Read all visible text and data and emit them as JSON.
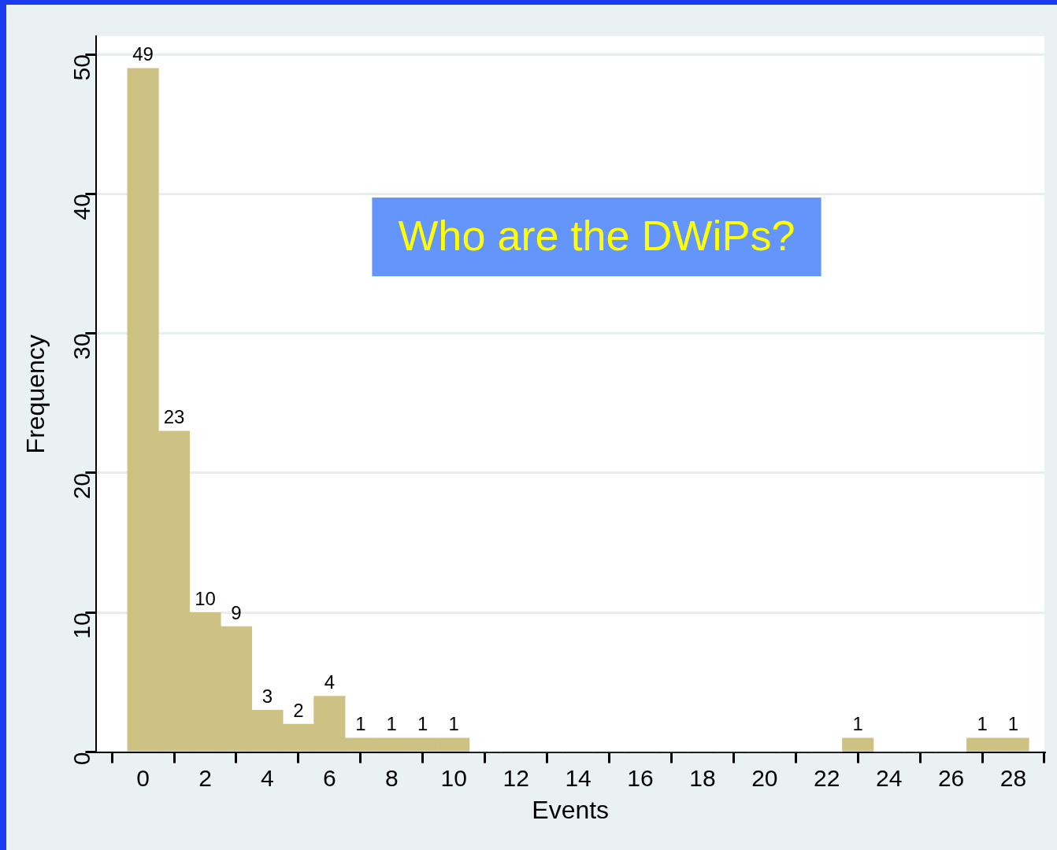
{
  "chart_data": {
    "type": "histogram",
    "xlabel": "Events",
    "ylabel": "Frequency",
    "annotations": [
      "Who are the DWiPs?"
    ],
    "bins": [
      -0.5,
      0.5,
      1.5,
      2.5,
      3.5,
      4.5,
      5.5,
      6.5,
      7.5,
      8.5,
      9.5,
      10.5,
      11.5,
      12.5,
      13.5,
      14.5,
      15.5,
      16.5,
      17.5,
      18.5,
      19.5,
      20.5,
      21.5,
      22.5,
      23.5,
      24.5,
      25.5,
      26.5,
      27.5,
      28.5
    ],
    "values": [
      49,
      23,
      10,
      9,
      3,
      2,
      4,
      1,
      1,
      1,
      1,
      0,
      0,
      0,
      0,
      0,
      0,
      0,
      0,
      0,
      0,
      0,
      0,
      1,
      0,
      0,
      0,
      1,
      1
    ],
    "value_labels": [
      "49",
      "23",
      "10",
      "9",
      "3",
      "2",
      "4",
      "1",
      "1",
      "1",
      "1",
      null,
      null,
      null,
      null,
      null,
      null,
      null,
      null,
      null,
      null,
      null,
      null,
      "1",
      null,
      null,
      null,
      "1",
      "1"
    ],
    "color": "#cdc283",
    "xlim": [
      -1.5,
      29
    ],
    "xticks": [
      0,
      2,
      4,
      6,
      8,
      10,
      12,
      14,
      16,
      18,
      20,
      22,
      24,
      26,
      28
    ],
    "ylim": [
      0,
      51.3
    ],
    "yticks": [
      0,
      10,
      20,
      30,
      40,
      50
    ],
    "grid": "y",
    "legend": false
  }
}
